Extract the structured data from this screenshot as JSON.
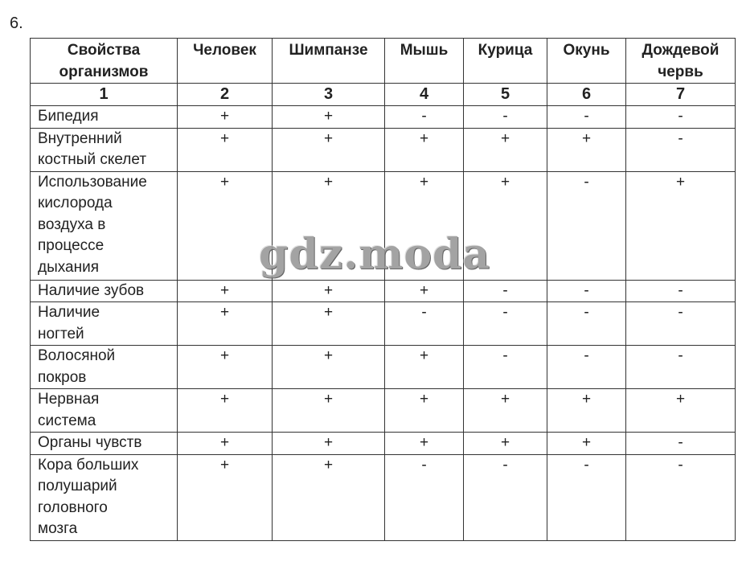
{
  "task_number": "6.",
  "watermark": "gdz.moda",
  "table": {
    "headers": [
      "Свойства\nорганизмов",
      "Человек",
      "Шимпанзе",
      "Мышь",
      "Курица",
      "Окунь",
      "Дождевой\nчервь"
    ],
    "index_row": [
      "1",
      "2",
      "3",
      "4",
      "5",
      "6",
      "7"
    ],
    "rows": [
      {
        "label": "Бипедия",
        "values": [
          "+",
          "+",
          "-",
          "-",
          "-",
          "-"
        ]
      },
      {
        "label": "Внутренний\nкостный скелет",
        "values": [
          "+",
          "+",
          "+",
          "+",
          "+",
          "-"
        ]
      },
      {
        "label": "Использование\nкислорода\nвоздуха в\nпроцессе\nдыхания",
        "values": [
          "+",
          "+",
          "+",
          "+",
          "-",
          "+"
        ]
      },
      {
        "label": "Наличие зубов",
        "values": [
          "+",
          "+",
          "+",
          "-",
          "-",
          "-"
        ]
      },
      {
        "label": "Наличие\nногтей",
        "values": [
          "+",
          "+",
          "-",
          "-",
          "-",
          "-"
        ]
      },
      {
        "label": "Волосяной\nпокров",
        "values": [
          "+",
          "+",
          "+",
          "-",
          "-",
          "-"
        ]
      },
      {
        "label": "Нервная\nсистема",
        "values": [
          "+",
          "+",
          "+",
          "+",
          "+",
          "+"
        ]
      },
      {
        "label": "Органы чувств",
        "values": [
          "+",
          "+",
          "+",
          "+",
          "+",
          "-"
        ]
      },
      {
        "label": "Кора больших\nполушарий\nголовного\nмозга",
        "values": [
          "+",
          "+",
          "-",
          "-",
          "-",
          "-"
        ]
      }
    ]
  }
}
